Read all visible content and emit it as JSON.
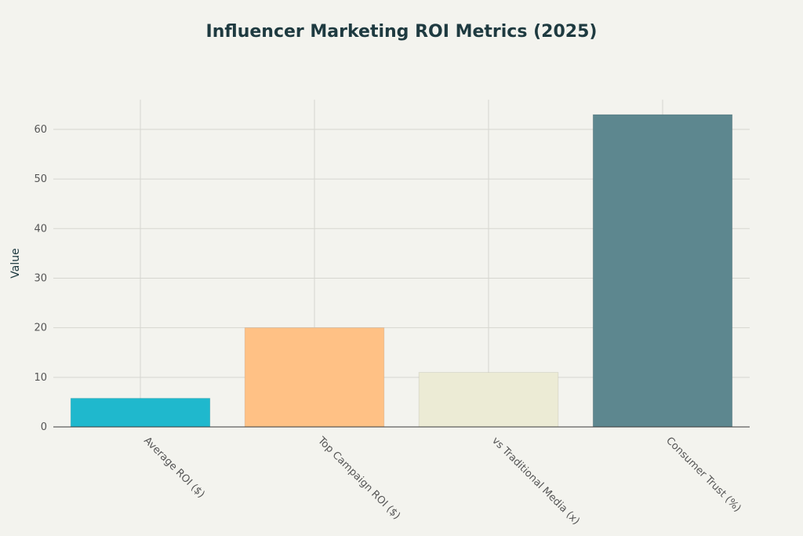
{
  "chart_data": {
    "type": "bar",
    "title": "Influencer Marketing ROI Metrics (2025)",
    "xlabel": "",
    "ylabel": "Value",
    "categories": [
      "Average ROI ($)",
      "Top Campaign ROI ($)",
      "vs Traditional Media (x)",
      "Consumer Trust (%)"
    ],
    "values": [
      5.78,
      20,
      11,
      63
    ],
    "colors": [
      "#1fb8cd",
      "#ffc185",
      "#eceBd5",
      "#5d878f"
    ],
    "ylim": [
      0,
      66
    ],
    "yticks": [
      0,
      10,
      20,
      30,
      40,
      50,
      60
    ],
    "grid": true,
    "legend": "none"
  }
}
